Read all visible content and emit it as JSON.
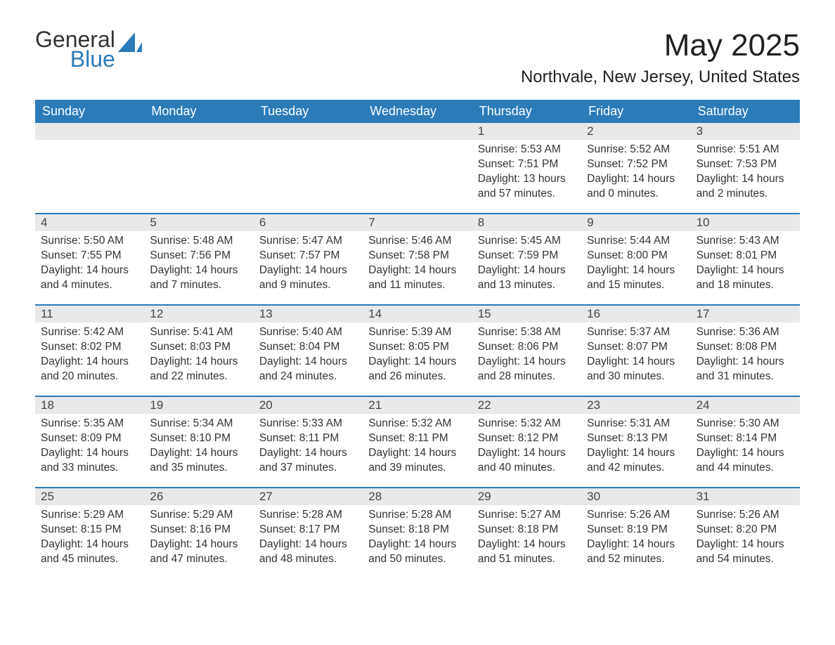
{
  "logo": {
    "text1": "General",
    "text2": "Blue"
  },
  "header": {
    "month_title": "May 2025",
    "location": "Northvale, New Jersey, United States"
  },
  "calendar": {
    "weekdays": [
      "Sunday",
      "Monday",
      "Tuesday",
      "Wednesday",
      "Thursday",
      "Friday",
      "Saturday"
    ],
    "colors": {
      "header_bg": "#2b7bb9",
      "header_text": "#ffffff",
      "daynum_bg": "#e9e9e9",
      "row_divider": "#2b7bb9",
      "body_text": "#333333",
      "page_bg": "#ffffff"
    },
    "font": {
      "weekday_size_pt": 14,
      "daynum_size_pt": 13,
      "body_size_pt": 12,
      "title_size_pt": 33,
      "location_size_pt": 18
    },
    "weeks": [
      [
        null,
        null,
        null,
        null,
        {
          "n": "1",
          "sunrise": "Sunrise: 5:53 AM",
          "sunset": "Sunset: 7:51 PM",
          "dl1": "Daylight: 13 hours",
          "dl2": "and 57 minutes."
        },
        {
          "n": "2",
          "sunrise": "Sunrise: 5:52 AM",
          "sunset": "Sunset: 7:52 PM",
          "dl1": "Daylight: 14 hours",
          "dl2": "and 0 minutes."
        },
        {
          "n": "3",
          "sunrise": "Sunrise: 5:51 AM",
          "sunset": "Sunset: 7:53 PM",
          "dl1": "Daylight: 14 hours",
          "dl2": "and 2 minutes."
        }
      ],
      [
        {
          "n": "4",
          "sunrise": "Sunrise: 5:50 AM",
          "sunset": "Sunset: 7:55 PM",
          "dl1": "Daylight: 14 hours",
          "dl2": "and 4 minutes."
        },
        {
          "n": "5",
          "sunrise": "Sunrise: 5:48 AM",
          "sunset": "Sunset: 7:56 PM",
          "dl1": "Daylight: 14 hours",
          "dl2": "and 7 minutes."
        },
        {
          "n": "6",
          "sunrise": "Sunrise: 5:47 AM",
          "sunset": "Sunset: 7:57 PM",
          "dl1": "Daylight: 14 hours",
          "dl2": "and 9 minutes."
        },
        {
          "n": "7",
          "sunrise": "Sunrise: 5:46 AM",
          "sunset": "Sunset: 7:58 PM",
          "dl1": "Daylight: 14 hours",
          "dl2": "and 11 minutes."
        },
        {
          "n": "8",
          "sunrise": "Sunrise: 5:45 AM",
          "sunset": "Sunset: 7:59 PM",
          "dl1": "Daylight: 14 hours",
          "dl2": "and 13 minutes."
        },
        {
          "n": "9",
          "sunrise": "Sunrise: 5:44 AM",
          "sunset": "Sunset: 8:00 PM",
          "dl1": "Daylight: 14 hours",
          "dl2": "and 15 minutes."
        },
        {
          "n": "10",
          "sunrise": "Sunrise: 5:43 AM",
          "sunset": "Sunset: 8:01 PM",
          "dl1": "Daylight: 14 hours",
          "dl2": "and 18 minutes."
        }
      ],
      [
        {
          "n": "11",
          "sunrise": "Sunrise: 5:42 AM",
          "sunset": "Sunset: 8:02 PM",
          "dl1": "Daylight: 14 hours",
          "dl2": "and 20 minutes."
        },
        {
          "n": "12",
          "sunrise": "Sunrise: 5:41 AM",
          "sunset": "Sunset: 8:03 PM",
          "dl1": "Daylight: 14 hours",
          "dl2": "and 22 minutes."
        },
        {
          "n": "13",
          "sunrise": "Sunrise: 5:40 AM",
          "sunset": "Sunset: 8:04 PM",
          "dl1": "Daylight: 14 hours",
          "dl2": "and 24 minutes."
        },
        {
          "n": "14",
          "sunrise": "Sunrise: 5:39 AM",
          "sunset": "Sunset: 8:05 PM",
          "dl1": "Daylight: 14 hours",
          "dl2": "and 26 minutes."
        },
        {
          "n": "15",
          "sunrise": "Sunrise: 5:38 AM",
          "sunset": "Sunset: 8:06 PM",
          "dl1": "Daylight: 14 hours",
          "dl2": "and 28 minutes."
        },
        {
          "n": "16",
          "sunrise": "Sunrise: 5:37 AM",
          "sunset": "Sunset: 8:07 PM",
          "dl1": "Daylight: 14 hours",
          "dl2": "and 30 minutes."
        },
        {
          "n": "17",
          "sunrise": "Sunrise: 5:36 AM",
          "sunset": "Sunset: 8:08 PM",
          "dl1": "Daylight: 14 hours",
          "dl2": "and 31 minutes."
        }
      ],
      [
        {
          "n": "18",
          "sunrise": "Sunrise: 5:35 AM",
          "sunset": "Sunset: 8:09 PM",
          "dl1": "Daylight: 14 hours",
          "dl2": "and 33 minutes."
        },
        {
          "n": "19",
          "sunrise": "Sunrise: 5:34 AM",
          "sunset": "Sunset: 8:10 PM",
          "dl1": "Daylight: 14 hours",
          "dl2": "and 35 minutes."
        },
        {
          "n": "20",
          "sunrise": "Sunrise: 5:33 AM",
          "sunset": "Sunset: 8:11 PM",
          "dl1": "Daylight: 14 hours",
          "dl2": "and 37 minutes."
        },
        {
          "n": "21",
          "sunrise": "Sunrise: 5:32 AM",
          "sunset": "Sunset: 8:11 PM",
          "dl1": "Daylight: 14 hours",
          "dl2": "and 39 minutes."
        },
        {
          "n": "22",
          "sunrise": "Sunrise: 5:32 AM",
          "sunset": "Sunset: 8:12 PM",
          "dl1": "Daylight: 14 hours",
          "dl2": "and 40 minutes."
        },
        {
          "n": "23",
          "sunrise": "Sunrise: 5:31 AM",
          "sunset": "Sunset: 8:13 PM",
          "dl1": "Daylight: 14 hours",
          "dl2": "and 42 minutes."
        },
        {
          "n": "24",
          "sunrise": "Sunrise: 5:30 AM",
          "sunset": "Sunset: 8:14 PM",
          "dl1": "Daylight: 14 hours",
          "dl2": "and 44 minutes."
        }
      ],
      [
        {
          "n": "25",
          "sunrise": "Sunrise: 5:29 AM",
          "sunset": "Sunset: 8:15 PM",
          "dl1": "Daylight: 14 hours",
          "dl2": "and 45 minutes."
        },
        {
          "n": "26",
          "sunrise": "Sunrise: 5:29 AM",
          "sunset": "Sunset: 8:16 PM",
          "dl1": "Daylight: 14 hours",
          "dl2": "and 47 minutes."
        },
        {
          "n": "27",
          "sunrise": "Sunrise: 5:28 AM",
          "sunset": "Sunset: 8:17 PM",
          "dl1": "Daylight: 14 hours",
          "dl2": "and 48 minutes."
        },
        {
          "n": "28",
          "sunrise": "Sunrise: 5:28 AM",
          "sunset": "Sunset: 8:18 PM",
          "dl1": "Daylight: 14 hours",
          "dl2": "and 50 minutes."
        },
        {
          "n": "29",
          "sunrise": "Sunrise: 5:27 AM",
          "sunset": "Sunset: 8:18 PM",
          "dl1": "Daylight: 14 hours",
          "dl2": "and 51 minutes."
        },
        {
          "n": "30",
          "sunrise": "Sunrise: 5:26 AM",
          "sunset": "Sunset: 8:19 PM",
          "dl1": "Daylight: 14 hours",
          "dl2": "and 52 minutes."
        },
        {
          "n": "31",
          "sunrise": "Sunrise: 5:26 AM",
          "sunset": "Sunset: 8:20 PM",
          "dl1": "Daylight: 14 hours",
          "dl2": "and 54 minutes."
        }
      ]
    ]
  }
}
